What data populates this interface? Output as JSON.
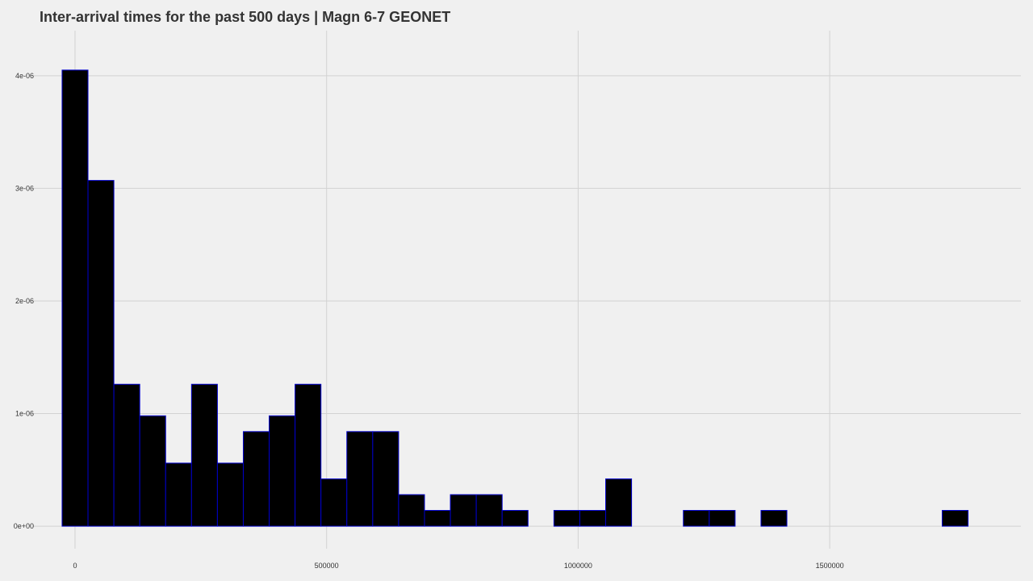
{
  "chart_data": {
    "type": "bar",
    "title": "Inter-arrival times for the past 500 days | Magn 6-7 GEONET",
    "subtitle": "",
    "xlabel": "",
    "ylabel": "",
    "bin_width": 51450,
    "bin_start": -25725,
    "values": [
      4.05e-06,
      3.07e-06,
      1.26e-06,
      9.8e-07,
      5.6e-07,
      1.26e-06,
      5.6e-07,
      8.4e-07,
      9.8e-07,
      1.26e-06,
      4.2e-07,
      8.4e-07,
      8.4e-07,
      2.8e-07,
      1.4e-07,
      2.8e-07,
      2.8e-07,
      1.4e-07,
      0,
      1.4e-07,
      1.4e-07,
      4.2e-07,
      0,
      0,
      1.4e-07,
      1.4e-07,
      0,
      1.4e-07,
      0,
      0,
      0,
      0,
      0,
      0,
      1.4e-07
    ],
    "xlim": [
      -85000,
      1880000
    ],
    "ylim": [
      -2e-07,
      4.4e-06
    ],
    "x_ticks": [
      0,
      500000,
      1000000,
      1500000
    ],
    "x_tick_labels": [
      "0",
      "500000",
      "1000000",
      "1500000"
    ],
    "y_ticks": [
      0,
      1e-06,
      2e-06,
      3e-06,
      4e-06
    ],
    "y_tick_labels": [
      "0e+00",
      "1e-06",
      "2e-06",
      "3e-06",
      "4e-06"
    ],
    "grid": true,
    "legend": "none",
    "colors": {
      "bar_fill": "#000000",
      "bar_stroke": "#0000cc",
      "grid": "#d2d2d2",
      "background": "#f0f0f0",
      "text": "#333333"
    }
  }
}
